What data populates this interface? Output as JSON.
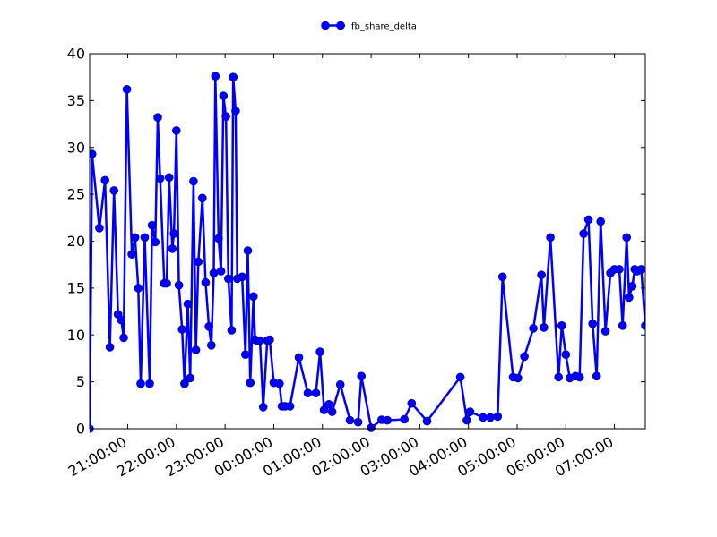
{
  "chart_data": {
    "type": "line",
    "title": "",
    "xlabel": "",
    "ylabel": "",
    "x_tick_labels": [
      "21:00:00",
      "22:00:00",
      "23:00:00",
      "00:00:00",
      "01:00:00",
      "02:00:00",
      "03:00:00",
      "04:00:00",
      "05:00:00",
      "06:00:00",
      "07:00:00"
    ],
    "y_tick_labels": [
      "0",
      "5",
      "10",
      "15",
      "20",
      "25",
      "30",
      "35",
      "40"
    ],
    "ylim": [
      0,
      40
    ],
    "xlim": [
      "20:13:00",
      "07:38:00"
    ],
    "legend_position": "top-center",
    "grid": false,
    "series": [
      {
        "name": "fb_share_delta",
        "color": "#0000ff",
        "marker": "circle",
        "x": [
          "20:13",
          "20:16",
          "20:25",
          "20:32",
          "20:38",
          "20:43",
          "20:48",
          "20:52",
          "20:55",
          "20:59",
          "21:05",
          "21:09",
          "21:13",
          "21:16",
          "21:21",
          "21:27",
          "21:30",
          "21:34",
          "21:37",
          "21:40",
          "21:45",
          "21:48",
          "21:51",
          "21:55",
          "21:57",
          "22:00",
          "22:03",
          "22:07",
          "22:10",
          "22:14",
          "22:17",
          "22:21",
          "22:24",
          "22:27",
          "22:32",
          "22:36",
          "22:40",
          "22:43",
          "22:46",
          "22:48",
          "22:52",
          "22:55",
          "22:58",
          "23:01",
          "23:04",
          "23:08",
          "23:10",
          "23:13",
          "23:15",
          "23:21",
          "23:25",
          "23:28",
          "23:31",
          "23:35",
          "23:37",
          "23:39",
          "23:43",
          "23:47",
          "23:52",
          "23:55",
          "24:00",
          "24:07",
          "24:10",
          "24:14",
          "24:20",
          "24:31",
          "24:42",
          "24:52",
          "24:57",
          "25:02",
          "25:08",
          "25:12",
          "25:22",
          "25:34",
          "25:44",
          "25:48",
          "26:00",
          "26:13",
          "26:20",
          "26:41",
          "26:50",
          "27:09",
          "27:50",
          "27:58",
          "28:02",
          "28:18",
          "28:27",
          "28:36",
          "28:42",
          "28:55",
          "29:01",
          "29:09",
          "29:20",
          "29:30",
          "29:33",
          "29:41",
          "29:51",
          "29:55",
          "30:00",
          "30:05",
          "30:12",
          "30:17",
          "30:22",
          "30:28",
          "30:33",
          "30:38",
          "30:43",
          "30:49",
          "30:55",
          "31:00",
          "31:06",
          "31:10",
          "31:15",
          "31:18",
          "31:22",
          "31:25",
          "31:28",
          "31:33",
          "31:38"
        ],
        "y": [
          0,
          29.3,
          21.4,
          26.5,
          8.7,
          25.4,
          12.2,
          11.6,
          9.7,
          36.2,
          18.6,
          20.4,
          15.0,
          4.8,
          20.4,
          4.8,
          21.7,
          19.9,
          33.2,
          26.7,
          15.5,
          15.5,
          26.8,
          19.2,
          20.8,
          31.8,
          15.3,
          10.6,
          4.8,
          13.3,
          5.4,
          26.4,
          8.4,
          17.8,
          24.6,
          15.6,
          10.9,
          8.9,
          16.6,
          37.6,
          20.3,
          16.8,
          35.5,
          33.3,
          16.0,
          10.5,
          37.5,
          33.9,
          16.0,
          16.2,
          7.9,
          19.0,
          4.9,
          14.1,
          9.5,
          9.4,
          9.4,
          2.3,
          9.4,
          9.5,
          4.9,
          4.8,
          2.4,
          2.4,
          2.4,
          7.6,
          3.8,
          3.8,
          8.2,
          2.0,
          2.6,
          1.8,
          4.7,
          0.9,
          0.7,
          5.6,
          0.1,
          0.95,
          0.9,
          1.0,
          2.7,
          0.8,
          5.5,
          0.9,
          1.8,
          1.2,
          1.2,
          1.3,
          16.2,
          5.5,
          5.4,
          7.7,
          10.7,
          16.4,
          10.8,
          20.4,
          5.5,
          11.0,
          7.9,
          5.4,
          5.6,
          5.5,
          20.8,
          22.3,
          11.2,
          5.6,
          22.1,
          10.4,
          16.6,
          17.0,
          17.0,
          11.0,
          20.4,
          14.0,
          15.2,
          17.0,
          16.8,
          17.0,
          11.0
        ]
      }
    ]
  }
}
